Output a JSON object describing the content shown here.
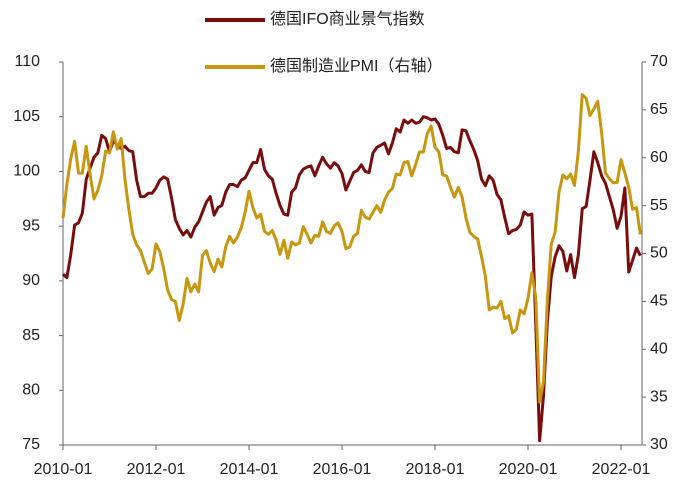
{
  "chart_data": {
    "type": "line",
    "series": [
      {
        "name": "德国IFO商业景气指数",
        "color": "#7b0c0c",
        "axis": "y",
        "values": [
          90.6,
          90.3,
          92.4,
          95.1,
          95.3,
          96.2,
          99.3,
          100.3,
          101.3,
          101.7,
          103.3,
          103.0,
          101.8,
          102.8,
          102.4,
          102.1,
          102.3,
          101.9,
          101.8,
          99.2,
          97.7,
          97.7,
          98.0,
          98.0,
          98.5,
          99.2,
          99.5,
          99.3,
          97.6,
          95.6,
          94.8,
          94.2,
          94.6,
          94.0,
          94.9,
          95.4,
          96.3,
          97.2,
          97.7,
          96.0,
          96.7,
          96.9,
          98.1,
          98.8,
          98.8,
          98.6,
          99.2,
          99.4,
          100.1,
          100.8,
          100.8,
          102.0,
          100.2,
          99.6,
          99.3,
          98.0,
          96.9,
          96.1,
          96.0,
          98.1,
          98.5,
          99.7,
          100.2,
          100.4,
          100.5,
          99.6,
          100.5,
          101.3,
          100.7,
          100.3,
          100.8,
          100.5,
          99.8,
          98.3,
          99.1,
          99.9,
          100.1,
          100.6,
          100.0,
          99.9,
          101.7,
          102.2,
          102.4,
          102.6,
          101.6,
          102.6,
          103.9,
          103.6,
          104.7,
          104.4,
          104.7,
          104.4,
          104.5,
          105.0,
          104.9,
          104.7,
          104.8,
          104.3,
          103.3,
          102.1,
          102.2,
          101.8,
          101.7,
          103.8,
          103.7,
          102.8,
          102.0,
          101.0,
          99.3,
          98.7,
          99.6,
          99.2,
          97.9,
          97.4,
          95.8,
          94.3,
          94.6,
          94.7,
          95.1,
          96.3,
          96.0,
          96.1,
          86.1,
          75.4,
          79.5,
          86.3,
          90.4,
          92.2,
          93.2,
          92.7,
          90.9,
          92.4,
          90.3,
          92.4,
          96.6,
          96.8,
          99.2,
          101.8,
          100.8,
          99.6,
          98.9,
          97.7,
          96.5,
          94.8,
          95.9,
          98.5,
          90.8,
          91.9,
          93.0,
          92.3
        ]
      },
      {
        "name": "德国制造业PMI（右轴）",
        "color": "#c9960f",
        "axis": "y2",
        "values": [
          53.7,
          57.2,
          59.9,
          61.7,
          58.4,
          58.4,
          61.2,
          58.2,
          55.7,
          56.6,
          58.1,
          60.7,
          60.5,
          62.7,
          60.9,
          62.0,
          57.7,
          54.6,
          52.0,
          50.9,
          50.3,
          49.1,
          47.9,
          48.4,
          51.0,
          50.2,
          48.4,
          46.2,
          45.2,
          45.0,
          43.0,
          44.7,
          47.4,
          46.0,
          46.8,
          46.0,
          49.8,
          50.3,
          49.0,
          48.1,
          49.4,
          48.6,
          50.7,
          51.8,
          51.1,
          51.7,
          52.7,
          54.3,
          56.5,
          54.8,
          53.7,
          54.1,
          52.3,
          52.0,
          52.4,
          51.4,
          49.9,
          51.4,
          49.5,
          51.2,
          50.9,
          51.1,
          52.8,
          52.0,
          51.1,
          51.9,
          51.8,
          53.3,
          52.3,
          52.1,
          52.9,
          53.2,
          52.3,
          50.5,
          50.7,
          51.8,
          52.1,
          54.5,
          53.8,
          53.6,
          54.3,
          55.0,
          54.3,
          55.6,
          56.4,
          56.8,
          58.3,
          58.2,
          59.5,
          59.6,
          58.1,
          59.3,
          60.6,
          60.6,
          62.5,
          63.3,
          61.1,
          60.6,
          58.2,
          58.1,
          56.9,
          55.9,
          56.9,
          55.9,
          53.7,
          52.2,
          51.8,
          51.5,
          49.7,
          47.6,
          44.1,
          44.4,
          44.3,
          45.0,
          43.2,
          43.5,
          41.7,
          42.1,
          44.1,
          43.7,
          45.3,
          48.0,
          45.4,
          34.5,
          36.6,
          45.2,
          51.0,
          52.2,
          56.4,
          58.2,
          57.8,
          58.3,
          57.1,
          60.7,
          66.6,
          66.2,
          64.4,
          65.1,
          65.9,
          62.6,
          58.4,
          57.8,
          57.4,
          57.4,
          59.8,
          58.4,
          56.9,
          54.6,
          54.8,
          52.0
        ]
      }
    ],
    "x": [
      "2010-01",
      "2010-02",
      "2010-03",
      "2010-04",
      "2010-05",
      "2010-06",
      "2010-07",
      "2010-08",
      "2010-09",
      "2010-10",
      "2010-11",
      "2010-12",
      "2011-01",
      "2011-02",
      "2011-03",
      "2011-04",
      "2011-05",
      "2011-06",
      "2011-07",
      "2011-08",
      "2011-09",
      "2011-10",
      "2011-11",
      "2011-12",
      "2012-01",
      "2012-02",
      "2012-03",
      "2012-04",
      "2012-05",
      "2012-06",
      "2012-07",
      "2012-08",
      "2012-09",
      "2012-10",
      "2012-11",
      "2012-12",
      "2013-01",
      "2013-02",
      "2013-03",
      "2013-04",
      "2013-05",
      "2013-06",
      "2013-07",
      "2013-08",
      "2013-09",
      "2013-10",
      "2013-11",
      "2013-12",
      "2014-01",
      "2014-02",
      "2014-03",
      "2014-04",
      "2014-05",
      "2014-06",
      "2014-07",
      "2014-08",
      "2014-09",
      "2014-10",
      "2014-11",
      "2014-12",
      "2015-01",
      "2015-02",
      "2015-03",
      "2015-04",
      "2015-05",
      "2015-06",
      "2015-07",
      "2015-08",
      "2015-09",
      "2015-10",
      "2015-11",
      "2015-12",
      "2016-01",
      "2016-02",
      "2016-03",
      "2016-04",
      "2016-05",
      "2016-06",
      "2016-07",
      "2016-08",
      "2016-09",
      "2016-10",
      "2016-11",
      "2016-12",
      "2017-01",
      "2017-02",
      "2017-03",
      "2017-04",
      "2017-05",
      "2017-06",
      "2017-07",
      "2017-08",
      "2017-09",
      "2017-10",
      "2017-11",
      "2017-12",
      "2018-01",
      "2018-02",
      "2018-03",
      "2018-04",
      "2018-05",
      "2018-06",
      "2018-07",
      "2018-08",
      "2018-09",
      "2018-10",
      "2018-11",
      "2018-12",
      "2019-01",
      "2019-02",
      "2019-03",
      "2019-04",
      "2019-05",
      "2019-06",
      "2019-07",
      "2019-08",
      "2019-09",
      "2019-10",
      "2019-11",
      "2019-12",
      "2020-01",
      "2020-02",
      "2020-03",
      "2020-04",
      "2020-05",
      "2020-06",
      "2020-07",
      "2020-08",
      "2020-09",
      "2020-10",
      "2020-11",
      "2020-12",
      "2021-01",
      "2021-02",
      "2021-03",
      "2021-04",
      "2021-05",
      "2021-06",
      "2021-07",
      "2021-08",
      "2021-09",
      "2021-10",
      "2021-11",
      "2021-12",
      "2022-01",
      "2022-02",
      "2022-03",
      "2022-04",
      "2022-05",
      "2022-06"
    ],
    "xticks": [
      "2010-01",
      "2012-01",
      "2014-01",
      "2016-01",
      "2018-01",
      "2020-01",
      "2022-01"
    ],
    "ylim": [
      75,
      110
    ],
    "yticks": [
      75,
      80,
      85,
      90,
      95,
      100,
      105,
      110
    ],
    "y2lim": [
      30,
      70
    ],
    "y2ticks": [
      30,
      35,
      40,
      45,
      50,
      55,
      60,
      65,
      70
    ],
    "grid": false
  }
}
